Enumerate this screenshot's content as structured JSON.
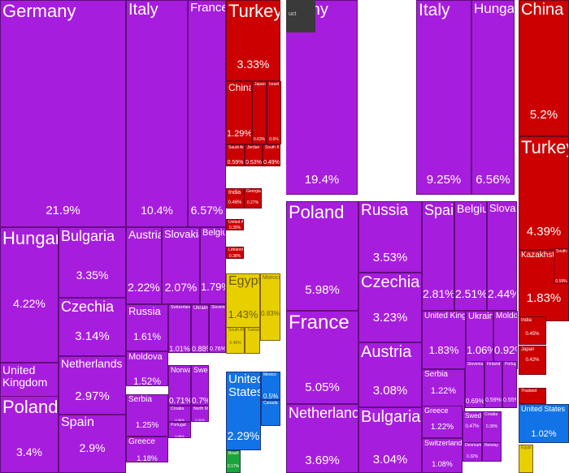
{
  "chart_data": [
    {
      "type": "treemap",
      "colors": {
        "Europe": "#a71ddd",
        "Asia": "#cc0000",
        "Africa": "#e8d000",
        "Americas": "#1173e6",
        "Other": "#19a53c"
      },
      "items": [
        {
          "name": "Germany",
          "value": "21.9%",
          "region": "Europe"
        },
        {
          "name": "Italy",
          "value": "10.4%",
          "region": "Europe"
        },
        {
          "name": "France",
          "value": "6.57%",
          "region": "Europe"
        },
        {
          "name": "Turkey",
          "value": "3.33%",
          "region": "Asia"
        },
        {
          "name": "China",
          "value": "1.29%",
          "region": "Asia"
        },
        {
          "name": "Japan",
          "value": "0.63%",
          "region": "Asia"
        },
        {
          "name": "Israel",
          "value": "0.6%",
          "region": "Asia"
        },
        {
          "name": "Saudi Arabia",
          "value": "0.59%",
          "region": "Asia"
        },
        {
          "name": "Jordan",
          "value": "0.53%",
          "region": "Asia"
        },
        {
          "name": "South Korea",
          "value": "0.49%",
          "region": "Asia"
        },
        {
          "name": "India",
          "value": "0.46%",
          "region": "Asia"
        },
        {
          "name": "Georgia",
          "value": "0.27%",
          "region": "Asia"
        },
        {
          "name": "United Arab Emirates",
          "value": "0.39%",
          "region": "Asia"
        },
        {
          "name": "Lebanon",
          "value": "0.38%",
          "region": "Asia"
        },
        {
          "name": "Hungary",
          "value": "4.22%",
          "region": "Europe"
        },
        {
          "name": "Bulgaria",
          "value": "3.35%",
          "region": "Europe"
        },
        {
          "name": "Austria",
          "value": "2.22%",
          "region": "Europe"
        },
        {
          "name": "Slovakia",
          "value": "2.07%",
          "region": "Europe"
        },
        {
          "name": "Belgium",
          "value": "1.79%",
          "region": "Europe"
        },
        {
          "name": "Czechia",
          "value": "3.14%",
          "region": "Europe"
        },
        {
          "name": "United Kingdom",
          "value": "3.6%",
          "region": "Europe"
        },
        {
          "name": "Netherlands",
          "value": "2.97%",
          "region": "Europe"
        },
        {
          "name": "Russia",
          "value": "1.61%",
          "region": "Europe"
        },
        {
          "name": "Switzerland",
          "value": "1.01%",
          "region": "Europe"
        },
        {
          "name": "Ukraine",
          "value": "0.88%",
          "region": "Europe"
        },
        {
          "name": "Slovenia",
          "value": "0.76%",
          "region": "Europe"
        },
        {
          "name": "Moldova",
          "value": "1.52%",
          "region": "Europe"
        },
        {
          "name": "Norway",
          "value": "0.71%",
          "region": "Europe"
        },
        {
          "name": "Sweden",
          "value": "0.7%",
          "region": "Europe"
        },
        {
          "name": "Serbia",
          "value": "1.25%",
          "region": "Europe"
        },
        {
          "name": "Croatia",
          "value": "0.36%",
          "region": "Europe"
        },
        {
          "name": "North Macedonia",
          "value": "0.32%",
          "region": "Europe"
        },
        {
          "name": "Portugal",
          "value": "0.36%",
          "region": "Europe"
        },
        {
          "name": "Greece",
          "value": "1.18%",
          "region": "Europe"
        },
        {
          "name": "Poland",
          "value": "3.4%",
          "region": "Europe"
        },
        {
          "name": "Spain",
          "value": "2.9%",
          "region": "Europe"
        },
        {
          "name": "Egypt",
          "value": "1.43%",
          "region": "Africa"
        },
        {
          "name": "Morocco",
          "value": "0.83%",
          "region": "Africa"
        },
        {
          "name": "South Africa",
          "value": "0.46%",
          "region": "Africa"
        },
        {
          "name": "Tunisia",
          "value": "",
          "region": "Africa"
        },
        {
          "name": "United States",
          "value": "2.29%",
          "region": "Americas"
        },
        {
          "name": "Mexico",
          "value": "0.5%",
          "region": "Americas"
        },
        {
          "name": "Canada",
          "value": "",
          "region": "Americas"
        },
        {
          "name": "Brazil",
          "value": "0.17%",
          "region": "Other"
        }
      ]
    },
    {
      "type": "treemap",
      "colors": {
        "Europe": "#a71ddd",
        "Asia": "#cc0000",
        "Africa": "#e8d000",
        "Americas": "#1173e6",
        "Other": "#19a53c"
      },
      "items": [
        {
          "name": "many",
          "value": "19.4%",
          "region": "Europe"
        },
        {
          "name": "Italy",
          "value": "9.25%",
          "region": "Europe"
        },
        {
          "name": "Hungary",
          "value": "6.56%",
          "region": "Europe"
        },
        {
          "name": "China",
          "value": "5.2%",
          "region": "Asia"
        },
        {
          "name": "Turkey",
          "value": "4.39%",
          "region": "Asia"
        },
        {
          "name": "Kazakhstan",
          "value": "1.83%",
          "region": "Asia"
        },
        {
          "name": "South Korea",
          "value": "0.59%",
          "region": "Asia"
        },
        {
          "name": "India",
          "value": "0.45%",
          "region": "Asia"
        },
        {
          "name": "Japan",
          "value": "0.42%",
          "region": "Asia"
        },
        {
          "name": "Thailand",
          "value": "",
          "region": "Asia"
        },
        {
          "name": "Poland",
          "value": "5.98%",
          "region": "Europe"
        },
        {
          "name": "Russia",
          "value": "3.53%",
          "region": "Europe"
        },
        {
          "name": "Spain",
          "value": "2.81%",
          "region": "Europe"
        },
        {
          "name": "Belgium",
          "value": "2.51%",
          "region": "Europe"
        },
        {
          "name": "Slovakia",
          "value": "2.44%",
          "region": "Europe"
        },
        {
          "name": "Czechia",
          "value": "3.23%",
          "region": "Europe"
        },
        {
          "name": "France",
          "value": "5.05%",
          "region": "Europe"
        },
        {
          "name": "United Kingdom",
          "value": "1.83%",
          "region": "Europe"
        },
        {
          "name": "Ukraine",
          "value": "1.06%",
          "region": "Europe"
        },
        {
          "name": "Moldova",
          "value": "0.92%",
          "region": "Europe"
        },
        {
          "name": "Austria",
          "value": "3.08%",
          "region": "Europe"
        },
        {
          "name": "Serbia",
          "value": "1.22%",
          "region": "Europe"
        },
        {
          "name": "Slovenia",
          "value": "0.69%",
          "region": "Europe"
        },
        {
          "name": "Finland",
          "value": "0.59%",
          "region": "Europe"
        },
        {
          "name": "Portugal",
          "value": "0.55%",
          "region": "Europe"
        },
        {
          "name": "Netherlands",
          "value": "3.69%",
          "region": "Europe"
        },
        {
          "name": "Bulgaria",
          "value": "3.04%",
          "region": "Europe"
        },
        {
          "name": "Greece",
          "value": "1.22%",
          "region": "Europe"
        },
        {
          "name": "Sweden",
          "value": "0.47%",
          "region": "Europe"
        },
        {
          "name": "Croatia",
          "value": "0.39%",
          "region": "Europe"
        },
        {
          "name": "Switzerland",
          "value": "1.08%",
          "region": "Europe"
        },
        {
          "name": "Denmark",
          "value": "0.32%",
          "region": "Europe"
        },
        {
          "name": "Norway",
          "value": "",
          "region": "Europe"
        },
        {
          "name": "United States",
          "value": "1.02%",
          "region": "Americas"
        },
        {
          "name": "Egypt",
          "value": "",
          "region": "Africa"
        }
      ]
    }
  ],
  "overlay": {
    "label": "uct"
  }
}
